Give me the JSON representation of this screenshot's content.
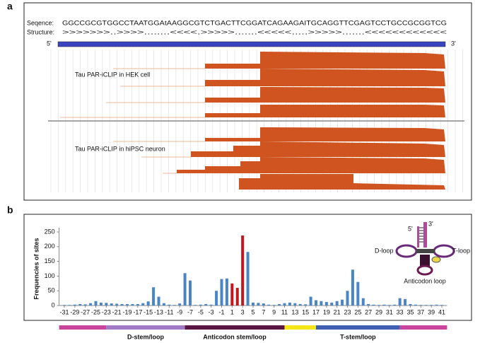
{
  "panel_a": {
    "label": "a",
    "sequence_label": "Seqence:",
    "sequence": "GGCCGCGTGGCCTAATGGAtAAGGCGTCTGACTTCGGATCAGAAGAITGCAGGTTCGAGTCCTGCCGCGGTCG",
    "structure_label": "Structure:",
    "structure": ">>>>>>>..>>>>........<<<<.>>>>>.......<<<<<.....>>>>>.......<<<<<<<<<<<<",
    "five_prime": "5'",
    "three_prime": "3'",
    "tracks": [
      "Tau PAR-iCLIP in HEK cell",
      "Tau PAR-iCLIP in hiPSC neuron"
    ]
  },
  "chart_data": {
    "type": "bar",
    "panel_label": "b",
    "y_label": "Frequencies of sites",
    "x": [
      -31,
      -30,
      -29,
      -28,
      -27,
      -26,
      -25,
      -24,
      -23,
      -22,
      -21,
      -20,
      -19,
      -18,
      -17,
      -16,
      -15,
      -14,
      -13,
      -12,
      -11,
      -10,
      -9,
      -8,
      -7,
      -6,
      -5,
      -4,
      -3,
      -2,
      -1,
      0,
      1,
      2,
      3,
      4,
      5,
      6,
      7,
      8,
      9,
      10,
      11,
      12,
      13,
      14,
      15,
      16,
      17,
      18,
      19,
      20,
      21,
      22,
      23,
      24,
      25,
      26,
      27,
      28,
      29,
      30,
      31,
      32,
      33,
      34,
      35,
      36,
      37,
      38,
      39,
      40,
      41
    ],
    "values": [
      2,
      2,
      3,
      5,
      4,
      8,
      15,
      10,
      9,
      7,
      6,
      5,
      5,
      5,
      5,
      8,
      14,
      62,
      30,
      8,
      3,
      2,
      7,
      110,
      85,
      2,
      3,
      5,
      3,
      50,
      90,
      92,
      75,
      60,
      238,
      182,
      10,
      9,
      7,
      3,
      2,
      5,
      8,
      10,
      8,
      5,
      4,
      30,
      18,
      15,
      12,
      10,
      15,
      20,
      50,
      122,
      80,
      25,
      5,
      3,
      2,
      3,
      2,
      3,
      25,
      22,
      5,
      3,
      2,
      2,
      2,
      3,
      2
    ],
    "colors": [
      "#4a86c5",
      "#4a86c5",
      "#4a86c5",
      "#4a86c5",
      "#4a86c5",
      "#4a86c5",
      "#4a86c5",
      "#4a86c5",
      "#4a86c5",
      "#4a86c5",
      "#4a86c5",
      "#4a86c5",
      "#4a86c5",
      "#4a86c5",
      "#4a86c5",
      "#4a86c5",
      "#4a86c5",
      "#4a86c5",
      "#4a86c5",
      "#4a86c5",
      "#4a86c5",
      "#4a86c5",
      "#4a86c5",
      "#4a86c5",
      "#4a86c5",
      "#4a86c5",
      "#4a86c5",
      "#4a86c5",
      "#4a86c5",
      "#4a86c5",
      "#4a86c5",
      "#4a86c5",
      "#c0181e",
      "#c0181e",
      "#c0181e",
      "#4a86c5",
      "#4a86c5",
      "#4a86c5",
      "#4a86c5",
      "#4a86c5",
      "#4a86c5",
      "#4a86c5",
      "#4a86c5",
      "#4a86c5",
      "#4a86c5",
      "#4a86c5",
      "#4a86c5",
      "#4a86c5",
      "#4a86c5",
      "#4a86c5",
      "#4a86c5",
      "#4a86c5",
      "#4a86c5",
      "#4a86c5",
      "#4a86c5",
      "#4a86c5",
      "#4a86c5",
      "#4a86c5",
      "#4a86c5",
      "#4a86c5",
      "#4a86c5",
      "#4a86c5",
      "#4a86c5",
      "#4a86c5",
      "#4a86c5",
      "#4a86c5",
      "#4a86c5",
      "#4a86c5",
      "#4a86c5",
      "#4a86c5",
      "#4a86c5",
      "#4a86c5",
      "#4a86c5"
    ],
    "xlim": [
      -32,
      42
    ],
    "xticks": [
      -31,
      -29,
      -27,
      -25,
      -23,
      -21,
      -19,
      -17,
      -15,
      -13,
      -11,
      -9,
      -7,
      -5,
      -3,
      -1,
      1,
      3,
      5,
      7,
      9,
      11,
      13,
      15,
      17,
      19,
      21,
      23,
      25,
      27,
      29,
      31,
      33,
      35,
      37,
      39,
      41
    ],
    "ylim": [
      0,
      250
    ],
    "yticks": [
      0,
      50,
      100,
      150,
      200,
      250
    ],
    "regions": [
      {
        "from": -32,
        "to": -23,
        "color": "#c9449a"
      },
      {
        "from": -23,
        "to": -8,
        "color": "#a07ac4",
        "label": "D-stem/loop"
      },
      {
        "from": -8,
        "to": 11,
        "color": "#5a1640",
        "label": "Anticodon stem/loop"
      },
      {
        "from": 11,
        "to": 17,
        "color": "#f5e618"
      },
      {
        "from": 17,
        "to": 33,
        "color": "#3f5fb0",
        "label": "T-stem/loop"
      },
      {
        "from": 33,
        "to": 42,
        "color": "#c9449a"
      }
    ],
    "inset": {
      "five_prime": "5'",
      "three_prime": "3'",
      "d_loop": "D-loop",
      "t_loop": "T-loop",
      "anticodon_loop": "Anticodon loop"
    }
  }
}
